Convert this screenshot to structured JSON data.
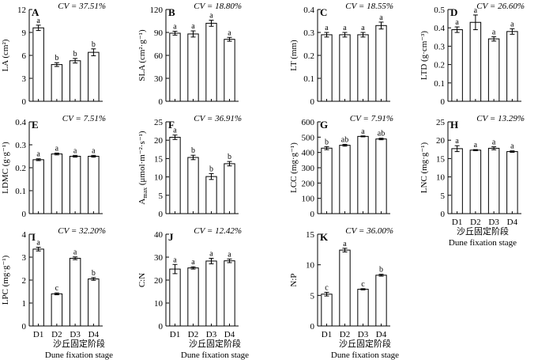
{
  "figure": {
    "xtitle_zh": "沙丘固定阶段",
    "xtitle_en": "Dune fixation stage"
  },
  "chart_data": [
    {
      "panel": "A",
      "type": "bar",
      "categories": [
        "D1",
        "D2",
        "D3",
        "D4"
      ],
      "values": [
        9.6,
        4.8,
        5.3,
        6.4
      ],
      "errors": [
        0.35,
        0.25,
        0.3,
        0.45
      ],
      "letters": [
        "a",
        "b",
        "b",
        "b"
      ],
      "cv": "CV = 37.51%",
      "ylabel": "LA (cm²)",
      "ylim": [
        0,
        12
      ],
      "yticks": [
        0,
        3,
        6,
        9,
        12
      ]
    },
    {
      "panel": "B",
      "type": "bar",
      "categories": [
        "D1",
        "D2",
        "D3",
        "D4"
      ],
      "values": [
        89,
        88,
        102,
        81
      ],
      "errors": [
        2.5,
        4,
        4,
        2.5
      ],
      "letters": [
        "a",
        "a",
        "a",
        "a"
      ],
      "cv": "CV = 18.80%",
      "ylabel": "SLA (cm²·g⁻¹)",
      "ylim": [
        0,
        120
      ],
      "yticks": [
        0,
        30,
        60,
        90,
        120
      ]
    },
    {
      "panel": "C",
      "type": "bar",
      "categories": [
        "D1",
        "D2",
        "D3",
        "D4"
      ],
      "values": [
        0.29,
        0.29,
        0.29,
        0.33
      ],
      "errors": [
        0.01,
        0.01,
        0.01,
        0.015
      ],
      "letters": [
        "a",
        "a",
        "a",
        "a"
      ],
      "cv": "CV = 18.55%",
      "ylabel": "LT (mm)",
      "ylim": [
        0,
        0.4
      ],
      "yticks": [
        0,
        0.1,
        0.2,
        0.3,
        0.4
      ]
    },
    {
      "panel": "D",
      "type": "bar",
      "categories": [
        "D1",
        "D2",
        "D3",
        "D4"
      ],
      "values": [
        0.39,
        0.43,
        0.34,
        0.38
      ],
      "errors": [
        0.015,
        0.04,
        0.012,
        0.015
      ],
      "letters": [
        "a",
        "a",
        "a",
        "a"
      ],
      "cv": "CV = 26.60%",
      "ylabel": "LTD (g·cm⁻³)",
      "ylim": [
        0,
        0.5
      ],
      "yticks": [
        0,
        0.1,
        0.2,
        0.3,
        0.4,
        0.5
      ]
    },
    {
      "panel": "E",
      "type": "bar",
      "categories": [
        "D1",
        "D2",
        "D3",
        "D4"
      ],
      "values": [
        0.235,
        0.26,
        0.25,
        0.25
      ],
      "errors": [
        0.004,
        0.004,
        0.004,
        0.004
      ],
      "letters": [
        "a",
        "a",
        "a",
        "a"
      ],
      "cv": "CV = 7.51%",
      "ylabel": "LDMC (g·g⁻¹)",
      "ylim": [
        0,
        0.4
      ],
      "yticks": [
        0,
        0.1,
        0.2,
        0.3,
        0.4
      ]
    },
    {
      "panel": "F",
      "type": "bar",
      "categories": [
        "D1",
        "D2",
        "D3",
        "D4"
      ],
      "values": [
        20.8,
        15.3,
        10.1,
        13.6
      ],
      "errors": [
        0.6,
        0.6,
        0.8,
        0.6
      ],
      "letters": [
        "a",
        "b",
        "b",
        "b"
      ],
      "cv": "CV = 36.91%",
      "ylabel": "A_max (μmol·m⁻²·s⁻¹)",
      "ylim": [
        0,
        25
      ],
      "yticks": [
        0,
        5,
        10,
        15,
        20,
        25
      ]
    },
    {
      "panel": "G",
      "type": "bar",
      "categories": [
        "D1",
        "D2",
        "D3",
        "D4"
      ],
      "values": [
        428,
        447,
        505,
        488
      ],
      "errors": [
        10,
        6,
        3,
        5
      ],
      "letters": [
        "b",
        "ab",
        "a",
        "ab"
      ],
      "cv": "CV = 7.91%",
      "ylabel": "LCC (mg·g⁻¹)",
      "ylim": [
        0,
        600
      ],
      "yticks": [
        0,
        100,
        200,
        300,
        400,
        500,
        600
      ]
    },
    {
      "panel": "H",
      "type": "bar",
      "categories": [
        "D1",
        "D2",
        "D3",
        "D4"
      ],
      "values": [
        17.7,
        17.3,
        17.8,
        16.9
      ],
      "errors": [
        0.8,
        0.15,
        0.4,
        0.2
      ],
      "letters": [
        "a",
        "a",
        "a",
        "a"
      ],
      "cv": "CV = 13.29%",
      "ylabel": "LNC (mg·g⁻¹)",
      "ylim": [
        0,
        25
      ],
      "yticks": [
        0,
        5,
        10,
        15,
        20,
        25
      ]
    },
    {
      "panel": "I",
      "type": "bar",
      "categories": [
        "D1",
        "D2",
        "D3",
        "D4"
      ],
      "values": [
        3.35,
        1.4,
        2.95,
        2.05
      ],
      "errors": [
        0.08,
        0.04,
        0.06,
        0.06
      ],
      "letters": [
        "a",
        "c",
        "a",
        "b"
      ],
      "cv": "CV = 32.20%",
      "ylabel": "LPC (mg·g⁻¹)",
      "ylim": [
        0,
        4
      ],
      "yticks": [
        0,
        1,
        2,
        3,
        4
      ]
    },
    {
      "panel": "J",
      "type": "bar",
      "categories": [
        "D1",
        "D2",
        "D3",
        "D4"
      ],
      "values": [
        24.8,
        25.3,
        28.3,
        28.4
      ],
      "errors": [
        2.0,
        0.5,
        1.2,
        0.8
      ],
      "letters": [
        "a",
        "a",
        "a",
        "a"
      ],
      "cv": "CV = 12.42%",
      "ylabel": "C:N",
      "ylim": [
        0,
        40
      ],
      "yticks": [
        0,
        10,
        20,
        30,
        40
      ]
    },
    {
      "panel": "K",
      "type": "bar",
      "categories": [
        "D1",
        "D2",
        "D3",
        "D4"
      ],
      "values": [
        5.2,
        12.4,
        6.0,
        8.3
      ],
      "errors": [
        0.3,
        0.3,
        0.1,
        0.15
      ],
      "letters": [
        "c",
        "a",
        "c",
        "b"
      ],
      "cv": "CV = 36.00%",
      "ylabel": "N:P",
      "ylim": [
        0,
        15
      ],
      "yticks": [
        0,
        5,
        10,
        15
      ]
    }
  ]
}
